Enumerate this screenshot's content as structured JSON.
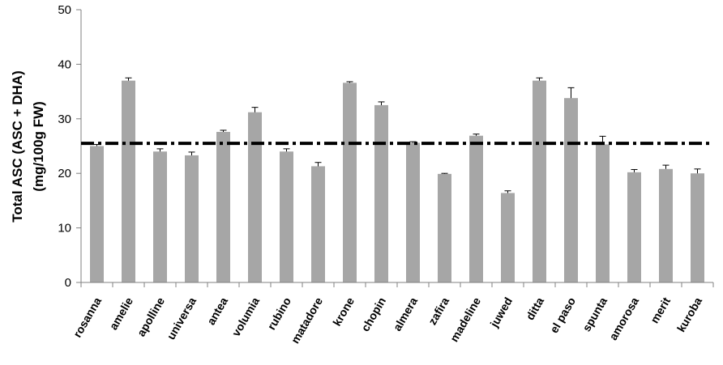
{
  "chart_data": {
    "type": "bar",
    "title": "",
    "ylabel_line1": "Total ASC (ASC + DHA)",
    "ylabel_line2": "(mg/100g FW)",
    "xlabel": "",
    "ylim": [
      0,
      50
    ],
    "yticks": [
      "0",
      "10",
      "20",
      "30",
      "40",
      "50"
    ],
    "categories": [
      "rosanna",
      "amelie",
      "apolline",
      "universa",
      "antea",
      "volumia",
      "rubino",
      "matadore",
      "krone",
      "chopin",
      "almera",
      "zafira",
      "madeline",
      "juwed",
      "ditta",
      "el paso",
      "spunta",
      "amorosa",
      "merit",
      "kuroba"
    ],
    "values": [
      25.0,
      37.0,
      24.0,
      23.3,
      27.6,
      31.2,
      24.0,
      21.3,
      36.6,
      32.5,
      25.6,
      19.9,
      26.9,
      16.4,
      37.0,
      33.8,
      25.3,
      20.2,
      20.8,
      20.0
    ],
    "errors": [
      0.3,
      0.5,
      0.5,
      0.6,
      0.3,
      0.9,
      0.5,
      0.7,
      0.2,
      0.6,
      0.2,
      0.1,
      0.3,
      0.4,
      0.5,
      1.9,
      1.5,
      0.5,
      0.7,
      0.8
    ],
    "reference_line": 25.5,
    "bar_color": "#a6a6a6",
    "grid": false
  }
}
